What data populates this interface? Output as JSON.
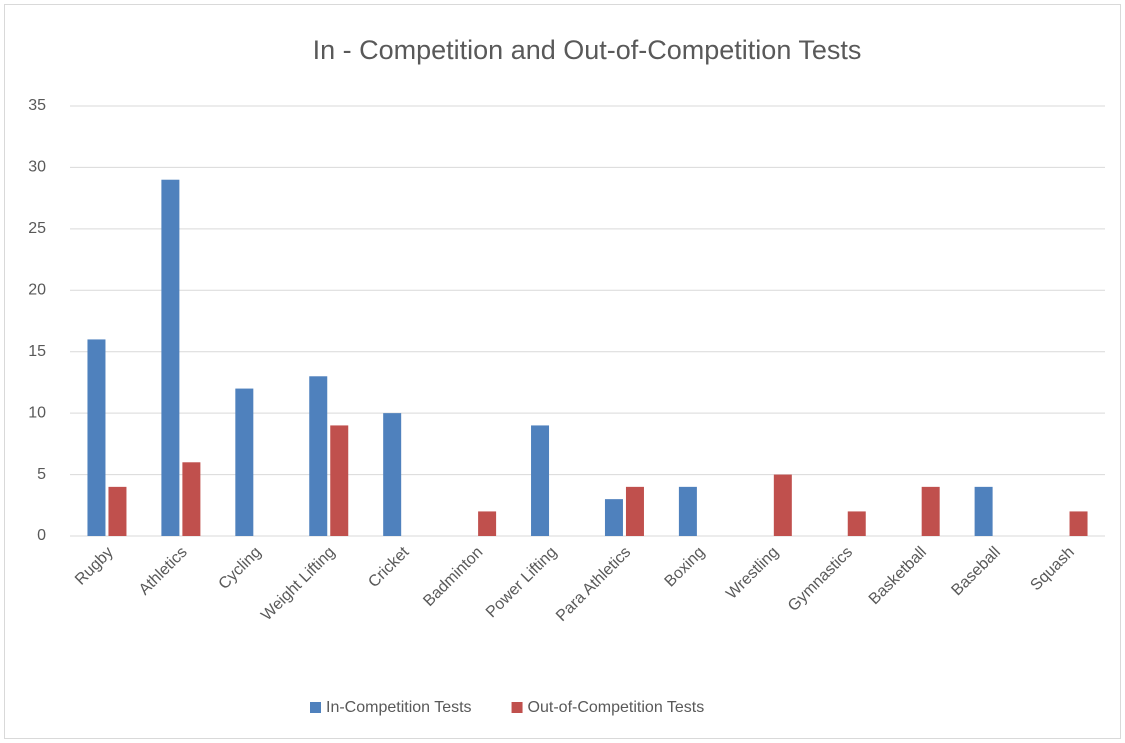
{
  "chart_data": {
    "type": "bar",
    "title": "In - Competition and Out-of-Competition Tests",
    "categories": [
      "Rugby",
      "Athletics",
      "Cycling",
      "Weight Lifting",
      "Cricket",
      "Badminton",
      "Power Lifting",
      "Para Athletics",
      "Boxing",
      "Wrestling",
      "Gymnastics",
      "Basketball",
      "Baseball",
      "Squash"
    ],
    "series": [
      {
        "name": "In-Competition Tests",
        "color": "#4f81bd",
        "values": [
          16,
          29,
          12,
          13,
          10,
          0,
          9,
          3,
          4,
          0,
          0,
          0,
          4,
          0
        ]
      },
      {
        "name": "Out-of-Competition Tests",
        "color": "#c0504d",
        "values": [
          4,
          6,
          0,
          9,
          0,
          2,
          0,
          4,
          0,
          5,
          2,
          4,
          0,
          2
        ]
      }
    ],
    "ylim": [
      0,
      35
    ],
    "yticks": [
      0,
      5,
      10,
      15,
      20,
      25,
      30,
      35
    ],
    "grid": true,
    "legend": "bottom"
  }
}
